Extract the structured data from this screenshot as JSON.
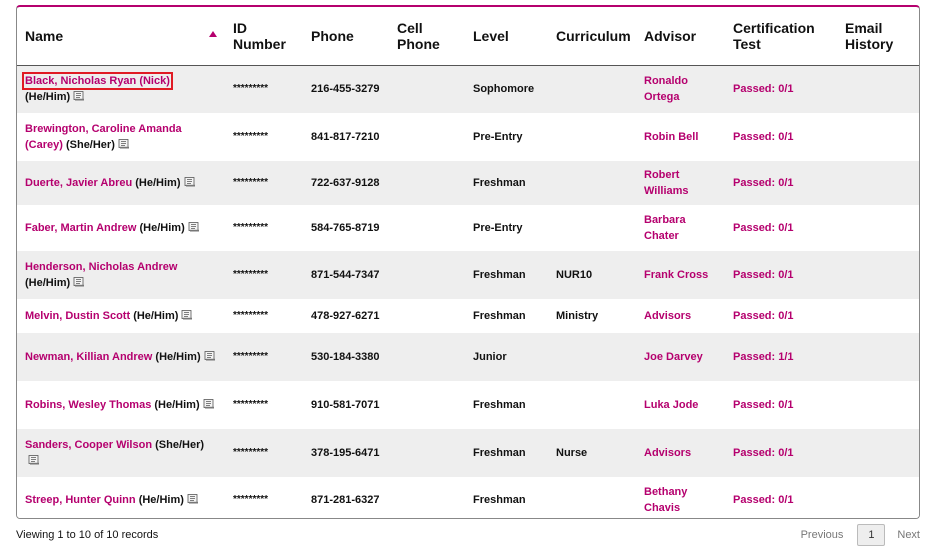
{
  "columns": [
    "Name",
    "ID Number",
    "Phone",
    "Cell Phone",
    "Level",
    "Curriculum",
    "Advisor",
    "Certification Test",
    "Email History"
  ],
  "rows": [
    {
      "name": "Black, Nicholas Ryan (Nick)",
      "pronoun": "(He/Him)",
      "id": "*********",
      "phone": "216-455-3279",
      "cell": "",
      "level": "Sophomore",
      "curriculum": "",
      "advisor": "Ronaldo Ortega",
      "cert": "Passed: 0/1",
      "email": ""
    },
    {
      "name": "Brewington, Caroline Amanda (Carey)",
      "pronoun": "(She/Her)",
      "id": "*********",
      "phone": "841-817-7210",
      "cell": "",
      "level": "Pre-Entry",
      "curriculum": "",
      "advisor": "Robin Bell",
      "cert": "Passed: 0/1",
      "email": ""
    },
    {
      "name": "Duerte, Javier Abreu",
      "pronoun": "(He/Him)",
      "id": "*********",
      "phone": "722-637-9128",
      "cell": "",
      "level": "Freshman",
      "curriculum": "",
      "advisor": "Robert Williams",
      "cert": "Passed: 0/1",
      "email": ""
    },
    {
      "name": "Faber, Martin Andrew",
      "pronoun": "(He/Him)",
      "id": "*********",
      "phone": "584-765-8719",
      "cell": "",
      "level": "Pre-Entry",
      "curriculum": "",
      "advisor": "Barbara Chater",
      "cert": "Passed: 0/1",
      "email": ""
    },
    {
      "name": "Henderson, Nicholas Andrew",
      "pronoun": "(He/Him)",
      "id": "*********",
      "phone": "871-544-7347",
      "cell": "",
      "level": "Freshman",
      "curriculum": "NUR10",
      "advisor": "Frank Cross",
      "cert": "Passed: 0/1",
      "email": ""
    },
    {
      "name": "Melvin, Dustin Scott",
      "pronoun": "(He/Him)",
      "id": "*********",
      "phone": "478-927-6271",
      "cell": "",
      "level": "Freshman",
      "curriculum": "Ministry",
      "advisor": "Advisors",
      "cert": "Passed: 0/1",
      "email": ""
    },
    {
      "name": "Newman, Killian Andrew",
      "pronoun": "(He/Him)",
      "id": "*********",
      "phone": "530-184-3380",
      "cell": "",
      "level": "Junior",
      "curriculum": "",
      "advisor": "Joe Darvey",
      "cert": "Passed: 1/1",
      "email": ""
    },
    {
      "name": "Robins, Wesley Thomas",
      "pronoun": "(He/Him)",
      "id": "*********",
      "phone": "910-581-7071",
      "cell": "",
      "level": "Freshman",
      "curriculum": "",
      "advisor": "Luka Jode",
      "cert": "Passed: 0/1",
      "email": ""
    },
    {
      "name": "Sanders, Cooper Wilson",
      "pronoun": "(She/Her)",
      "id": "*********",
      "phone": "378-195-6471",
      "cell": "",
      "level": "Freshman",
      "curriculum": "Nurse",
      "advisor": "Advisors",
      "cert": "Passed: 0/1",
      "email": ""
    },
    {
      "name": "Streep, Hunter Quinn",
      "pronoun": "(He/Him)",
      "id": "*********",
      "phone": "871-281-6327",
      "cell": "",
      "level": "Freshman",
      "curriculum": "",
      "advisor": "Bethany Chavis",
      "cert": "Passed: 0/1",
      "email": ""
    }
  ],
  "footer": {
    "info": "Viewing 1 to 10 of 10 records",
    "previous": "Previous",
    "page": "1",
    "next": "Next"
  },
  "colors": {
    "accent": "#b5006e",
    "highlight_box": "#e01b24",
    "row_alt": "#eeeeee"
  },
  "icons": {
    "sort": "sort-ascending-icon",
    "note": "note-icon"
  },
  "selected_row": 0
}
